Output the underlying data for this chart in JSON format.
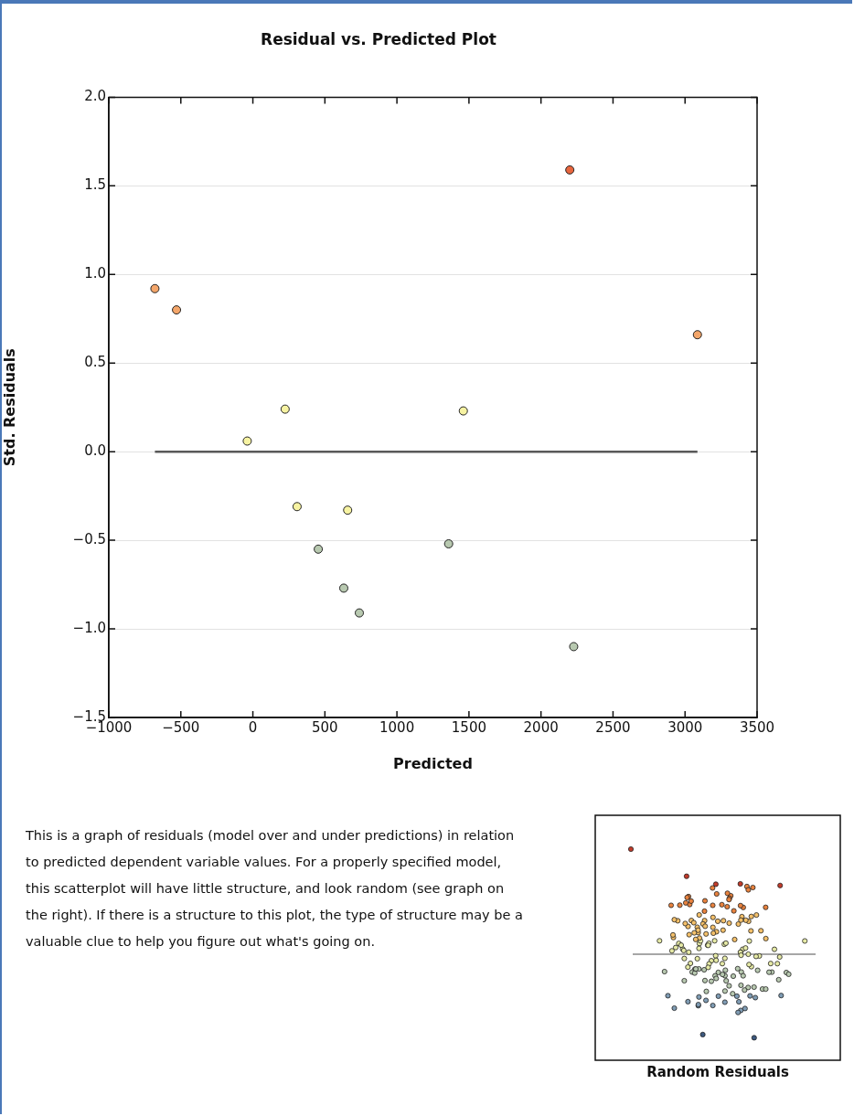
{
  "chart_data": {
    "type": "scatter",
    "title": "Residual vs. Predicted Plot",
    "xlabel": "Predicted",
    "ylabel": "Std. Residuals",
    "series": [
      {
        "type": "scatter",
        "marker": "circle",
        "x": [
          -680,
          -530,
          -39,
          224,
          307,
          454,
          631,
          658,
          739,
          1359,
          1461,
          2200,
          2227,
          3086
        ],
        "values": [
          0.92,
          0.8,
          0.06,
          0.24,
          -0.31,
          -0.55,
          -0.77,
          -0.33,
          -0.91,
          -0.52,
          0.23,
          1.59,
          -1.1,
          0.66
        ],
        "colors": [
          "#f4a66a",
          "#f4a66a",
          "#f7f3a2",
          "#f7f3a2",
          "#f7f3a2",
          "#b8c9b0",
          "#b8c9b0",
          "#f7f3a2",
          "#b8c9b0",
          "#b8c9b0",
          "#f7f3a2",
          "#e8663e",
          "#b8c9b0",
          "#f4a66a"
        ]
      },
      {
        "type": "line",
        "x": [
          -680,
          3086
        ],
        "values": [
          0,
          0
        ],
        "color": "#595959"
      }
    ],
    "xlim": [
      -1000,
      3500
    ],
    "xticks": [
      {
        "value": -1000,
        "label": "−1000"
      },
      {
        "value": -500,
        "label": "−500"
      },
      0,
      500,
      1000,
      1500,
      2000,
      2500,
      3000,
      3500
    ],
    "ylim": [
      -1.5,
      2.0
    ],
    "yticks": [
      {
        "value": -1.5,
        "label": "−1.5"
      },
      {
        "value": -1,
        "label": "−1.0"
      },
      {
        "value": -0.5,
        "label": "−0.5"
      },
      {
        "value": 0,
        "label": "0.0"
      },
      0.5,
      {
        "value": 1,
        "label": "1.0"
      },
      1.5,
      {
        "value": 2,
        "label": "2.0"
      }
    ],
    "grid": "y",
    "annotations": [
      "This is a graph of residuals (model over and under predictions) in relation to predicted dependent variable values. For a properly specified model, this scatterplot will have little structure, and look random (see graph on the right). If there is a structure to this plot, the type of structure may be a valuable clue to help you figure out what's going on.",
      "Random Residuals"
    ]
  }
}
